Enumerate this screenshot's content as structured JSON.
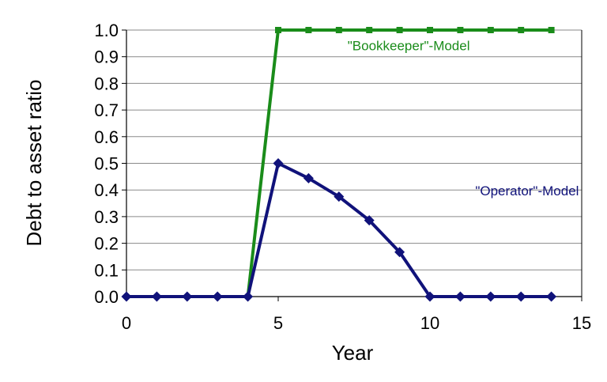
{
  "chart_data": {
    "type": "line",
    "xlabel": "Year",
    "ylabel": "Debt to asset ratio",
    "xlim": [
      0,
      15
    ],
    "ylim": [
      0,
      1.0
    ],
    "xticks": [
      "0",
      "5",
      "10",
      "15"
    ],
    "yticks": [
      "0.0",
      "0.1",
      "0.2",
      "0.3",
      "0.4",
      "0.5",
      "0.6",
      "0.7",
      "0.8",
      "0.9",
      "1.0"
    ],
    "grid": "horizontal",
    "series": [
      {
        "name": "\"Bookkeeper\"-Model",
        "color": "#1a8c1a",
        "marker": "square",
        "points": [
          [
            4,
            0.0
          ],
          [
            5,
            1.0
          ],
          [
            6,
            1.0
          ],
          [
            7,
            1.0
          ],
          [
            8,
            1.0
          ],
          [
            9,
            1.0
          ],
          [
            10,
            1.0
          ],
          [
            11,
            1.0
          ],
          [
            12,
            1.0
          ],
          [
            13,
            1.0
          ],
          [
            14,
            1.0
          ]
        ]
      },
      {
        "name": "\"Operator\"-Model",
        "color": "#10127a",
        "marker": "diamond",
        "points": [
          [
            0,
            0.0
          ],
          [
            1,
            0.0
          ],
          [
            2,
            0.0
          ],
          [
            3,
            0.0
          ],
          [
            4,
            0.0
          ],
          [
            5,
            0.5
          ],
          [
            6,
            0.444
          ],
          [
            7,
            0.375
          ],
          [
            8,
            0.286
          ],
          [
            9,
            0.167
          ],
          [
            10,
            0.0
          ],
          [
            11,
            0.0
          ],
          [
            12,
            0.0
          ],
          [
            13,
            0.0
          ],
          [
            14,
            0.0
          ]
        ]
      }
    ],
    "annotations": [
      {
        "text": "\"Bookkeeper\"-Model",
        "color": "#1a8c1a",
        "x": 9.3,
        "y": 0.925
      },
      {
        "text": "\"Operator\"-Model",
        "color": "#10127a",
        "x": 13.2,
        "y": 0.38
      }
    ]
  }
}
